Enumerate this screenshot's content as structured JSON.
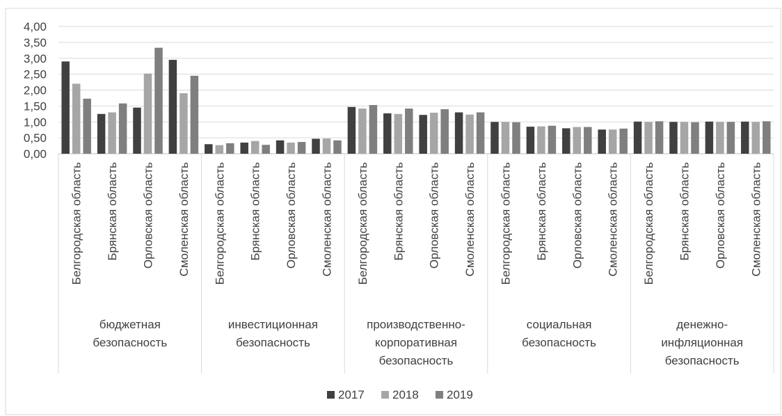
{
  "chart_data": {
    "type": "bar",
    "title": "",
    "xlabel": "",
    "ylabel": "",
    "ylim": [
      0,
      4
    ],
    "yticks": [
      "0,00",
      "0,50",
      "1,00",
      "1,50",
      "2,00",
      "2,50",
      "3,00",
      "3,50",
      "4,00"
    ],
    "grid": true,
    "legend_position": "bottom",
    "groups": [
      {
        "label_lines": [
          "бюджетная",
          "безопасность"
        ],
        "categories": [
          "Белгородская область",
          "Брянская область",
          "Орловская область",
          "Смоленская область"
        ]
      },
      {
        "label_lines": [
          "инвестиционная",
          "безопасность"
        ],
        "categories": [
          "Белгородская область",
          "Брянская область",
          "Орловская область",
          "Смоленская область"
        ]
      },
      {
        "label_lines": [
          "производственно-",
          "корпоративная",
          "безопасность"
        ],
        "categories": [
          "Белгородская область",
          "Брянская область",
          "Орловская область",
          "Смоленская область"
        ]
      },
      {
        "label_lines": [
          "социальная",
          "безопасность"
        ],
        "categories": [
          "Белгородская область",
          "Брянская область",
          "Орловская область",
          "Смоленская область"
        ]
      },
      {
        "label_lines": [
          "денежно-",
          "инфляционная",
          "безопасность"
        ],
        "categories": [
          "Белгородская область",
          "Брянская область",
          "Орловская область",
          "Смоленская область"
        ]
      }
    ],
    "series": [
      {
        "name": "2017",
        "color": "#404040",
        "values": [
          2.9,
          1.25,
          1.45,
          2.95,
          0.3,
          0.35,
          0.42,
          0.47,
          1.47,
          1.27,
          1.22,
          1.3,
          1.0,
          0.85,
          0.8,
          0.76,
          1.01,
          1.0,
          1.01,
          1.01
        ]
      },
      {
        "name": "2018",
        "color": "#a6a6a6",
        "values": [
          2.2,
          1.3,
          2.52,
          1.9,
          0.27,
          0.4,
          0.35,
          0.48,
          1.42,
          1.25,
          1.29,
          1.23,
          1.0,
          0.86,
          0.84,
          0.76,
          1.0,
          1.0,
          1.0,
          1.0
        ]
      },
      {
        "name": "2019",
        "color": "#7f7f7f",
        "values": [
          1.73,
          1.58,
          3.33,
          2.45,
          0.33,
          0.28,
          0.37,
          0.42,
          1.53,
          1.42,
          1.4,
          1.3,
          0.99,
          0.88,
          0.84,
          0.79,
          1.02,
          0.99,
          1.0,
          1.02
        ]
      }
    ]
  }
}
